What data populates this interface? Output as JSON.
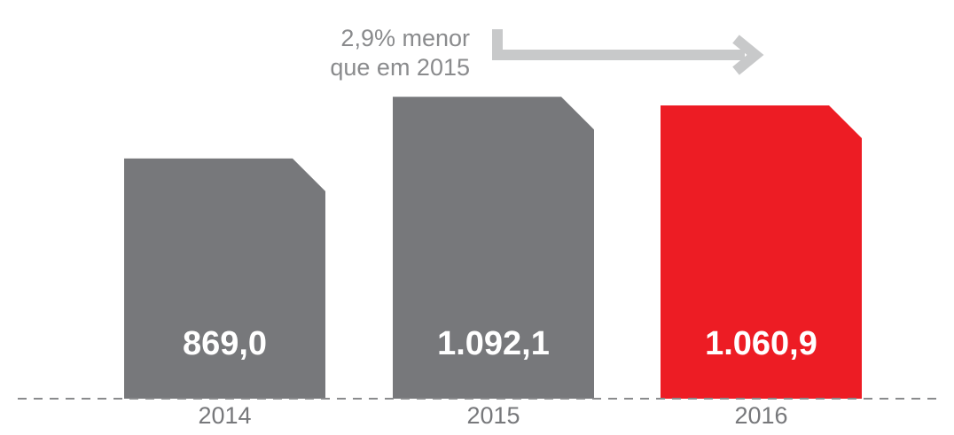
{
  "chart_data": {
    "type": "bar",
    "annotation": [
      "2,9% menor",
      "que em 2015"
    ],
    "categories": [
      "2014",
      "2015",
      "2016"
    ],
    "values": [
      869.0,
      1092.1,
      1060.9
    ],
    "value_labels": [
      "869,0",
      "1.092,1",
      "1.060,9"
    ],
    "colors": [
      "#77787b",
      "#77787b",
      "#ed1c24"
    ]
  }
}
